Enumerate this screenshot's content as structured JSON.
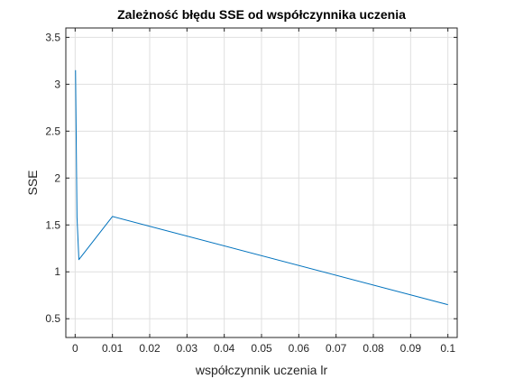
{
  "chart_data": {
    "type": "line",
    "title": "Zależność błędu SSE od współczynnika uczenia",
    "xlabel": "współczynnik uczenia lr",
    "ylabel": "SSE",
    "xlim": [
      -0.0025,
      0.1025
    ],
    "ylim": [
      0.3,
      3.6
    ],
    "xticks": [
      0,
      0.01,
      0.02,
      0.03,
      0.04,
      0.05,
      0.06,
      0.07,
      0.08,
      0.09,
      0.1
    ],
    "xtick_labels": [
      "0",
      "0.01",
      "0.02",
      "0.03",
      "0.04",
      "0.05",
      "0.06",
      "0.07",
      "0.08",
      "0.09",
      "0.1"
    ],
    "yticks": [
      0.5,
      1,
      1.5,
      2,
      2.5,
      3,
      3.5
    ],
    "ytick_labels": [
      "0.5",
      "1",
      "1.5",
      "2",
      "2.5",
      "3",
      "3.5"
    ],
    "grid": true,
    "legend": "none",
    "series": [
      {
        "color": "#0072bd",
        "x": [
          0.0001,
          0.0005,
          0.001,
          0.01,
          0.1
        ],
        "y": [
          3.15,
          1.58,
          1.13,
          1.59,
          0.65
        ]
      }
    ]
  }
}
